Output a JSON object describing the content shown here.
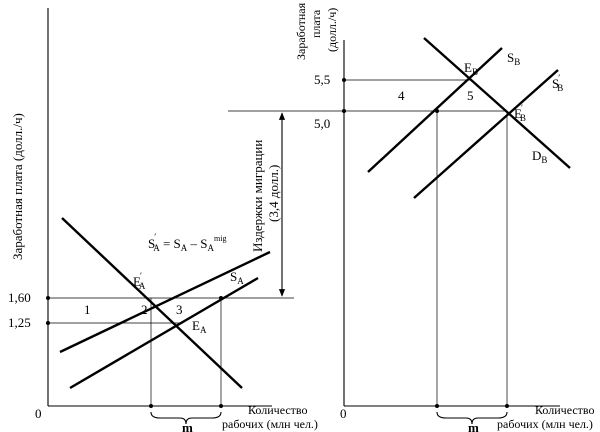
{
  "left_panel": {
    "y_axis_label": "Заработная плата (долл./ч)",
    "x_axis_label_line1": "Количество",
    "x_axis_label_line2": "рабочих (млн чел.)",
    "origin": "0",
    "tick_160": "1,60",
    "tick_125": "1,25",
    "region_1": "1",
    "region_2": "2",
    "region_3": "3",
    "curve_S_A": "S",
    "curve_S_A_sub": "A",
    "point_E_A": "E",
    "point_E_A_sub": "A",
    "point_E_A_prime": "E",
    "point_E_A_prime_sub": "A",
    "equation_lhs": "S",
    "equation_lhs_sub": "A",
    "equation_mid": " = S",
    "equation_mid_sub": "A",
    "equation_minus": " – S",
    "equation_end_sub": "A",
    "equation_sup": "mig",
    "migration_line1": "Издержки миграции",
    "migration_line2": "(3,4 долл.)",
    "brace_label": "m"
  },
  "right_panel": {
    "y_axis_label_line1": "Заработная",
    "y_axis_label_line2": "плата",
    "y_axis_label_line3": "(долл./ч)",
    "x_axis_label_line1": "Количество",
    "x_axis_label_line2": "рабочих (млн чел.)",
    "origin": "0",
    "tick_55": "5,5",
    "tick_50": "5,0",
    "region_4": "4",
    "region_5": "5",
    "curve_S_B": "S",
    "curve_S_B_sub": "B",
    "curve_S_B_prime": "S",
    "curve_S_B_prime_sub": "B",
    "curve_D_B": "D",
    "curve_D_B_sub": "B",
    "point_E_B": "E",
    "point_E_B_sub": "B",
    "point_E_B_prime": "E",
    "point_E_B_prime_sub": "B",
    "brace_label": "m"
  }
}
